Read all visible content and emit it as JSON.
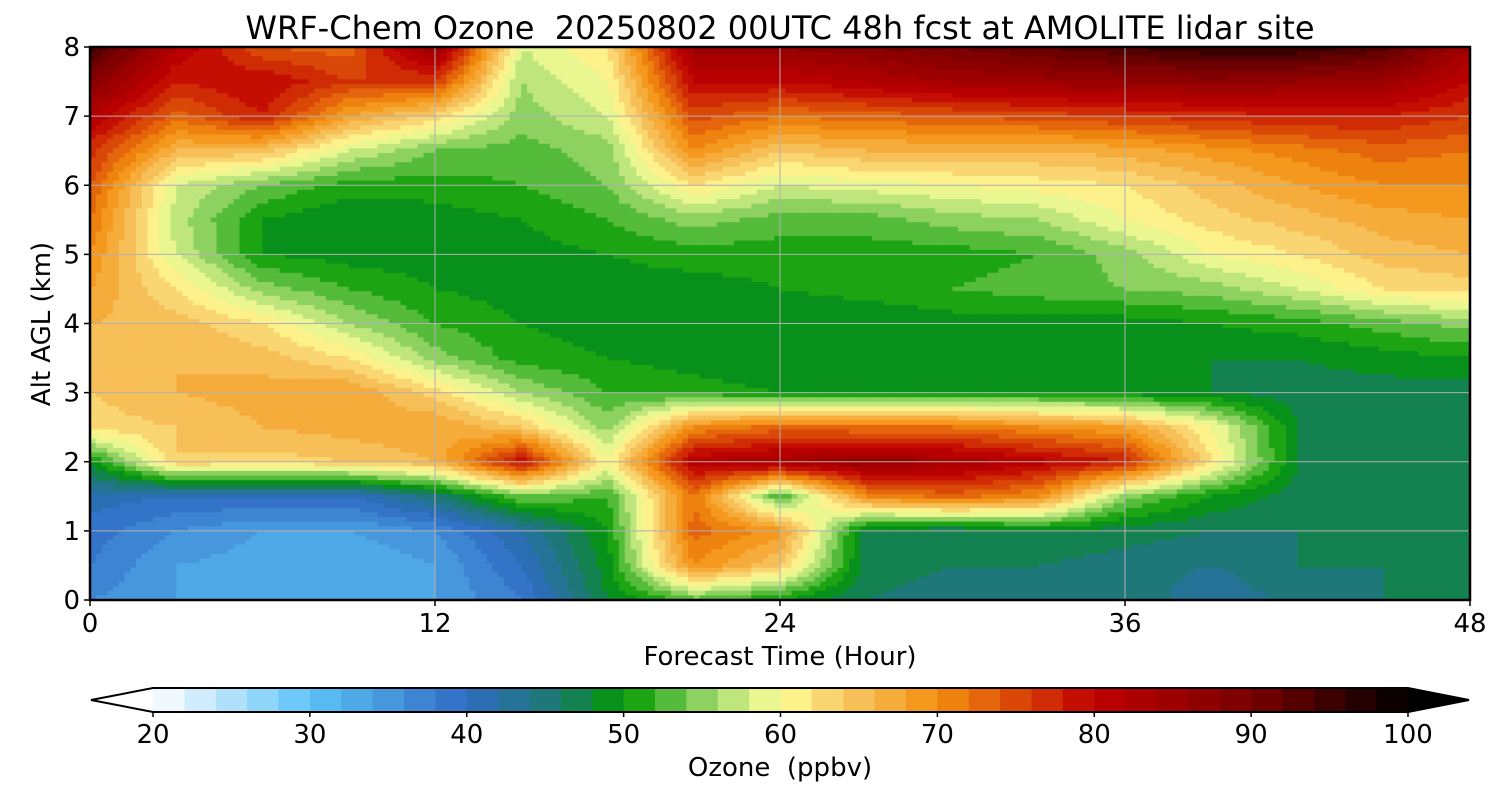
{
  "chart_data": {
    "type": "heatmap",
    "title": "WRF-Chem Ozone  20250802 00UTC 48h fcst at AMOLITE lidar site",
    "xlabel": "Forecast Time (Hour)",
    "ylabel": "Alt AGL (km)",
    "xlim": [
      0,
      48
    ],
    "ylim": [
      0,
      8
    ],
    "xticks": [
      0,
      12,
      24,
      36,
      48
    ],
    "yticks": [
      0,
      1,
      2,
      3,
      4,
      5,
      6,
      7,
      8
    ],
    "grid": true,
    "colorbar": {
      "label": "Ozone  (ppbv)",
      "min": 20,
      "max": 100,
      "step": 2,
      "ticks": [
        20,
        30,
        40,
        50,
        60,
        70,
        80,
        90,
        100
      ],
      "extend": "both",
      "colors": [
        {
          "v": 20,
          "c": "#ffffff"
        },
        {
          "v": 30,
          "c": "#5ec3f7"
        },
        {
          "v": 40,
          "c": "#2f6bc3"
        },
        {
          "v": 46,
          "c": "#1a7a6a"
        },
        {
          "v": 50,
          "c": "#009900"
        },
        {
          "v": 56,
          "c": "#a9dc74"
        },
        {
          "v": 60,
          "c": "#ffff99"
        },
        {
          "v": 64,
          "c": "#f8c865"
        },
        {
          "v": 70,
          "c": "#f39010"
        },
        {
          "v": 80,
          "c": "#c00000"
        },
        {
          "v": 90,
          "c": "#780000"
        },
        {
          "v": 100,
          "c": "#000000"
        }
      ]
    },
    "z_hours": [
      0,
      3,
      6,
      9,
      12,
      15,
      18,
      21,
      24,
      27,
      30,
      33,
      36,
      39,
      42,
      45,
      48
    ],
    "z_alts_km": [
      0,
      0.5,
      1,
      1.5,
      2,
      2.5,
      3,
      3.5,
      4,
      4.5,
      5,
      5.5,
      6,
      6.5,
      7,
      7.5,
      8
    ],
    "z_values_ppbv": [
      [
        36,
        34,
        32,
        32,
        34,
        38,
        48,
        53,
        50,
        46,
        45,
        45,
        46,
        42,
        45,
        46,
        47
      ],
      [
        38,
        34,
        33,
        32,
        34,
        40,
        49,
        70,
        64,
        47,
        46,
        46,
        45,
        44,
        46,
        46,
        47
      ],
      [
        39,
        36,
        34,
        34,
        36,
        42,
        50,
        73,
        69,
        47,
        46,
        48,
        47,
        46,
        46,
        47,
        47
      ],
      [
        41,
        40,
        40,
        40,
        45,
        54,
        52,
        72,
        52,
        70,
        73,
        70,
        55,
        50,
        47,
        47,
        47
      ],
      [
        49,
        64,
        63,
        64,
        66,
        80,
        60,
        82,
        84,
        86,
        84,
        81,
        78,
        62,
        48,
        47,
        47
      ],
      [
        63,
        64,
        66,
        67,
        68,
        64,
        55,
        70,
        73,
        72,
        72,
        70,
        68,
        60,
        48,
        47,
        47
      ],
      [
        64,
        66,
        67,
        68,
        63,
        56,
        52,
        51,
        50,
        50,
        50,
        50,
        49,
        48,
        47,
        47,
        47
      ],
      [
        65,
        66,
        65,
        62,
        55,
        51,
        50,
        49,
        48,
        48,
        48,
        48,
        48,
        48,
        48,
        49,
        50
      ],
      [
        66,
        65,
        62,
        56,
        52,
        50,
        49,
        48,
        48,
        48,
        49,
        49,
        49,
        50,
        51,
        53,
        55
      ],
      [
        68,
        62,
        55,
        52,
        50,
        49,
        49,
        49,
        50,
        51,
        52,
        53,
        54,
        55,
        58,
        62,
        63
      ],
      [
        70,
        58,
        50,
        49,
        49,
        49,
        50,
        51,
        51,
        51,
        51,
        52,
        55,
        60,
        62,
        65,
        66
      ],
      [
        72,
        57,
        50,
        48,
        49,
        50,
        52,
        55,
        53,
        53,
        55,
        56,
        60,
        63,
        65,
        67,
        68
      ],
      [
        74,
        58,
        54,
        51,
        51,
        52,
        54,
        62,
        58,
        59,
        60,
        61,
        62,
        65,
        68,
        70,
        70
      ],
      [
        77,
        66,
        65,
        58,
        54,
        53,
        55,
        70,
        64,
        66,
        66,
        66,
        67,
        69,
        71,
        73,
        72
      ],
      [
        82,
        73,
        78,
        68,
        63,
        55,
        58,
        75,
        72,
        73,
        74,
        75,
        76,
        77,
        78,
        78,
        76
      ],
      [
        88,
        78,
        80,
        76,
        76,
        56,
        60,
        80,
        80,
        82,
        84,
        85,
        86,
        87,
        86,
        85,
        80
      ],
      [
        95,
        82,
        74,
        73,
        86,
        58,
        62,
        85,
        86,
        88,
        90,
        92,
        94,
        96,
        96,
        93,
        84
      ]
    ]
  }
}
